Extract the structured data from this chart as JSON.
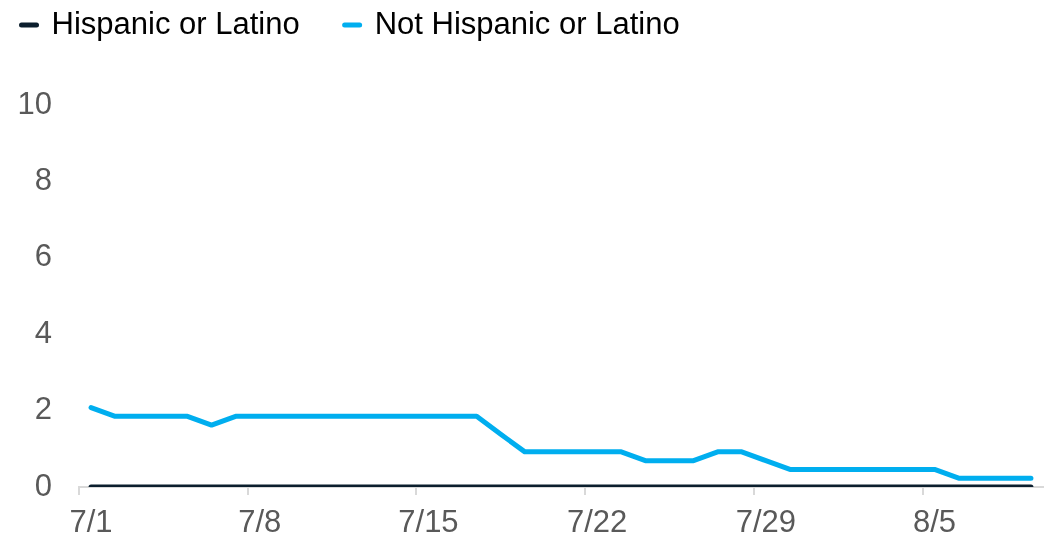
{
  "chart_data": {
    "type": "line",
    "categories": [
      "7/1",
      null,
      null,
      null,
      null,
      null,
      null,
      "7/8",
      null,
      null,
      null,
      null,
      null,
      null,
      "7/15",
      null,
      null,
      null,
      null,
      null,
      null,
      "7/22",
      null,
      null,
      null,
      null,
      null,
      null,
      "7/29",
      null,
      null,
      null,
      null,
      null,
      null,
      "8/5",
      null,
      null,
      null,
      null
    ],
    "series": [
      {
        "name": "Hispanic or Latino",
        "color": "#0b1e2d",
        "values": [
          0,
          0,
          0,
          0,
          0,
          0,
          0,
          0,
          0,
          0,
          0,
          0,
          0,
          0,
          0,
          0,
          0,
          0,
          0,
          0,
          0,
          0,
          0,
          0,
          0,
          0,
          0,
          0,
          0,
          0,
          0,
          0,
          0,
          0,
          0,
          0,
          0,
          0,
          0,
          0
        ]
      },
      {
        "name": "Not Hispanic or Latino",
        "color": "#00aeef",
        "values": [
          2.08,
          1.85,
          1.85,
          1.85,
          1.85,
          1.62,
          1.85,
          1.85,
          1.85,
          1.85,
          1.85,
          1.85,
          1.85,
          1.85,
          1.85,
          1.85,
          1.85,
          1.38,
          0.92,
          0.92,
          0.92,
          0.92,
          0.92,
          0.69,
          0.69,
          0.69,
          0.92,
          0.92,
          0.69,
          0.46,
          0.46,
          0.46,
          0.46,
          0.46,
          0.46,
          0.46,
          0.23,
          0.23,
          0.23,
          0.23
        ]
      }
    ],
    "ylim": [
      0,
      10
    ],
    "yticks": [
      0,
      2,
      4,
      6,
      8,
      10
    ],
    "grid": false,
    "legend": "top left",
    "marker": "none",
    "line_style": "solid"
  }
}
